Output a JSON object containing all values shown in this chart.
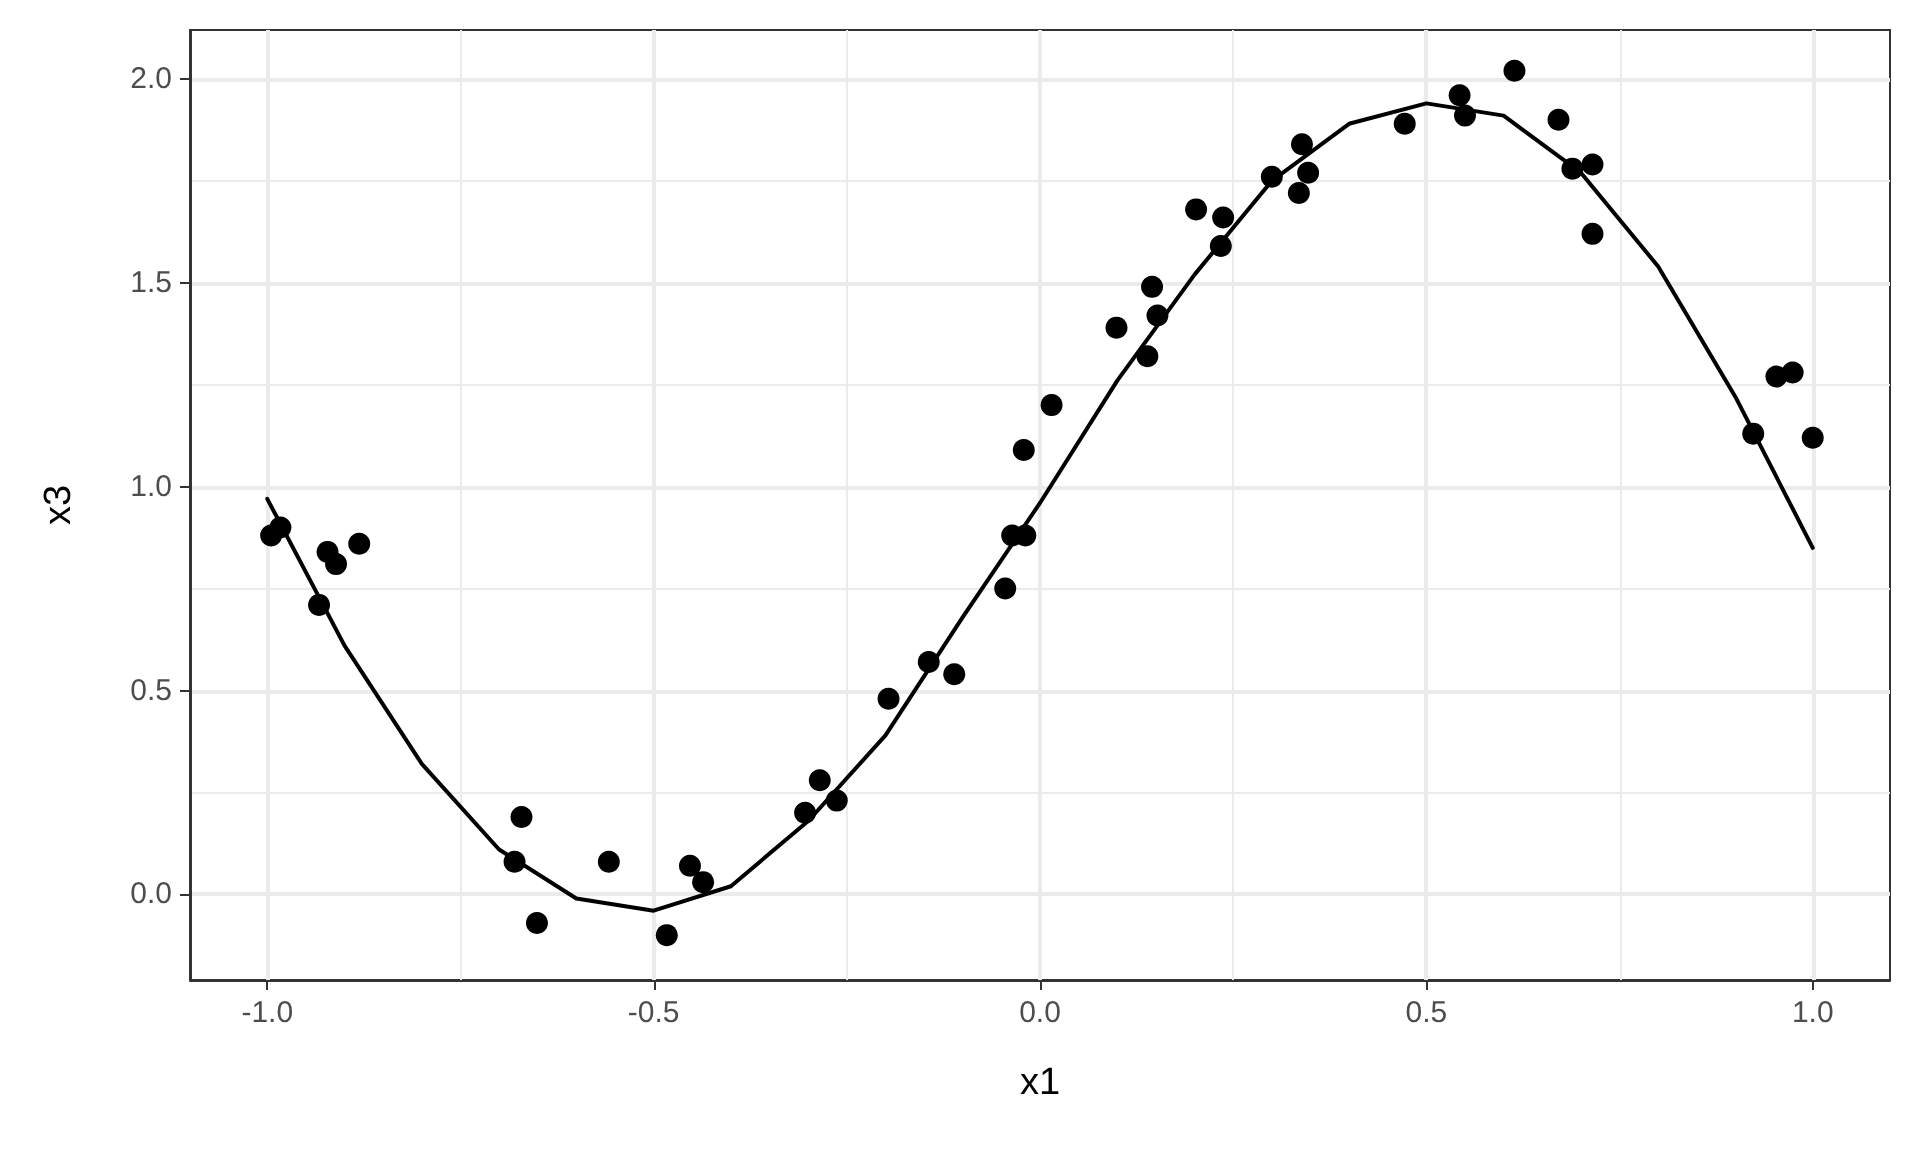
{
  "chart_data": {
    "type": "scatter",
    "xlabel": "x1",
    "ylabel": "x3",
    "xlim": [
      -1.1,
      1.1
    ],
    "ylim": [
      -0.21,
      2.12
    ],
    "xticks": [
      {
        "value": -1,
        "label": "-1.0"
      },
      {
        "value": -0.5,
        "label": "-0.5"
      },
      {
        "value": 0,
        "label": "0.0"
      },
      {
        "value": 0.5,
        "label": "0.5"
      },
      {
        "value": 1,
        "label": "1.0"
      }
    ],
    "yticks": [
      {
        "value": 0,
        "label": "0.0"
      },
      {
        "value": 0.5,
        "label": "0.5"
      },
      {
        "value": 1,
        "label": "1.0"
      },
      {
        "value": 1.5,
        "label": "1.5"
      },
      {
        "value": 2,
        "label": "2.0"
      }
    ],
    "grid": true,
    "marker": "circle",
    "line_style": "solid",
    "series": [
      {
        "color": "#000000",
        "x": [
          -0.995,
          -0.983,
          -0.933,
          -0.922,
          -0.911,
          -0.881,
          -0.68,
          -0.671,
          -0.651,
          -0.558,
          -0.483,
          -0.453,
          -0.436,
          -0.304,
          -0.285,
          -0.263,
          -0.196,
          -0.144,
          -0.111,
          -0.045,
          -0.036,
          -0.021,
          -0.019,
          0.015,
          0.099,
          0.139,
          0.145,
          0.152,
          0.202,
          0.234,
          0.237,
          0.3,
          0.335,
          0.339,
          0.347,
          0.472,
          0.543,
          0.55,
          0.614,
          0.671,
          0.689,
          0.715,
          0.715,
          0.923,
          0.953,
          0.974,
          1.0
        ],
        "values": [
          0.88,
          0.9,
          0.71,
          0.84,
          0.81,
          0.86,
          0.08,
          0.19,
          -0.07,
          0.08,
          -0.1,
          0.07,
          0.03,
          0.2,
          0.28,
          0.23,
          0.48,
          0.57,
          0.54,
          0.75,
          0.88,
          1.09,
          0.88,
          1.2,
          1.39,
          1.32,
          1.49,
          1.42,
          1.68,
          1.59,
          1.66,
          1.76,
          1.72,
          1.84,
          1.77,
          1.89,
          1.96,
          1.91,
          2.02,
          1.9,
          1.78,
          1.79,
          1.62,
          1.13,
          1.27,
          1.28,
          1.12
        ]
      },
      {
        "type": "line",
        "color": "#000000",
        "marker": "none",
        "x": [
          -1,
          -0.9,
          -0.8,
          -0.7,
          -0.6,
          -0.5,
          -0.4,
          -0.3,
          -0.2,
          -0.1,
          0,
          0.1,
          0.2,
          0.3,
          0.4,
          0.5,
          0.6,
          0.7,
          0.8,
          0.9,
          1
        ],
        "values": [
          0.97,
          0.61,
          0.32,
          0.11,
          -0.01,
          -0.04,
          0.02,
          0.18,
          0.39,
          0.68,
          0.96,
          1.26,
          1.52,
          1.75,
          1.89,
          1.94,
          1.91,
          1.77,
          1.54,
          1.22,
          0.85
        ]
      }
    ]
  }
}
